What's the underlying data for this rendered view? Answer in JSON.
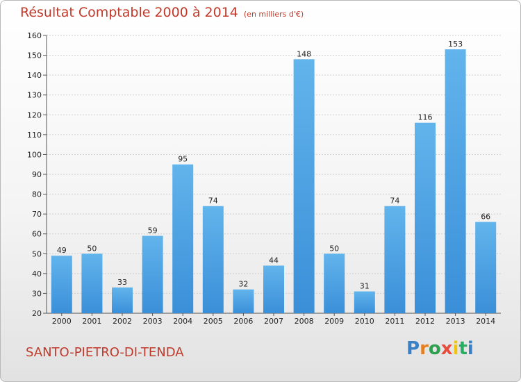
{
  "header": {
    "title": "Résultat Comptable 2000 à 2014",
    "unit": "(en milliers d'€)"
  },
  "footer": {
    "city": "SANTO-PIETRO-DI-TENDA",
    "logo_letters": [
      "P",
      "r",
      "o",
      "x",
      "i",
      "t",
      "i"
    ],
    "logo_colors": [
      "#3b7fc4",
      "#e67e22",
      "#2e9e4f",
      "#e74c3c",
      "#f1c40f",
      "#27ae60",
      "#3b7fc4"
    ]
  },
  "colors": {
    "bar": "#3a8fd8",
    "bar_light": "#62b4ec",
    "grid": "#cfcfcf",
    "title": "#c0392b"
  },
  "chart_data": {
    "type": "bar",
    "title": "Résultat Comptable 2000 à 2014",
    "categories": [
      "2000",
      "2001",
      "2002",
      "2003",
      "2004",
      "2005",
      "2006",
      "2007",
      "2008",
      "2009",
      "2010",
      "2011",
      "2012",
      "2013",
      "2014"
    ],
    "values": [
      49,
      50,
      33,
      59,
      95,
      74,
      32,
      44,
      148,
      50,
      31,
      74,
      116,
      153,
      66
    ],
    "ylim": [
      20,
      160
    ],
    "yticks": [
      20,
      30,
      40,
      50,
      60,
      70,
      80,
      90,
      100,
      110,
      120,
      130,
      140,
      150,
      160
    ],
    "grid": true,
    "xlabel": "",
    "ylabel": ""
  }
}
